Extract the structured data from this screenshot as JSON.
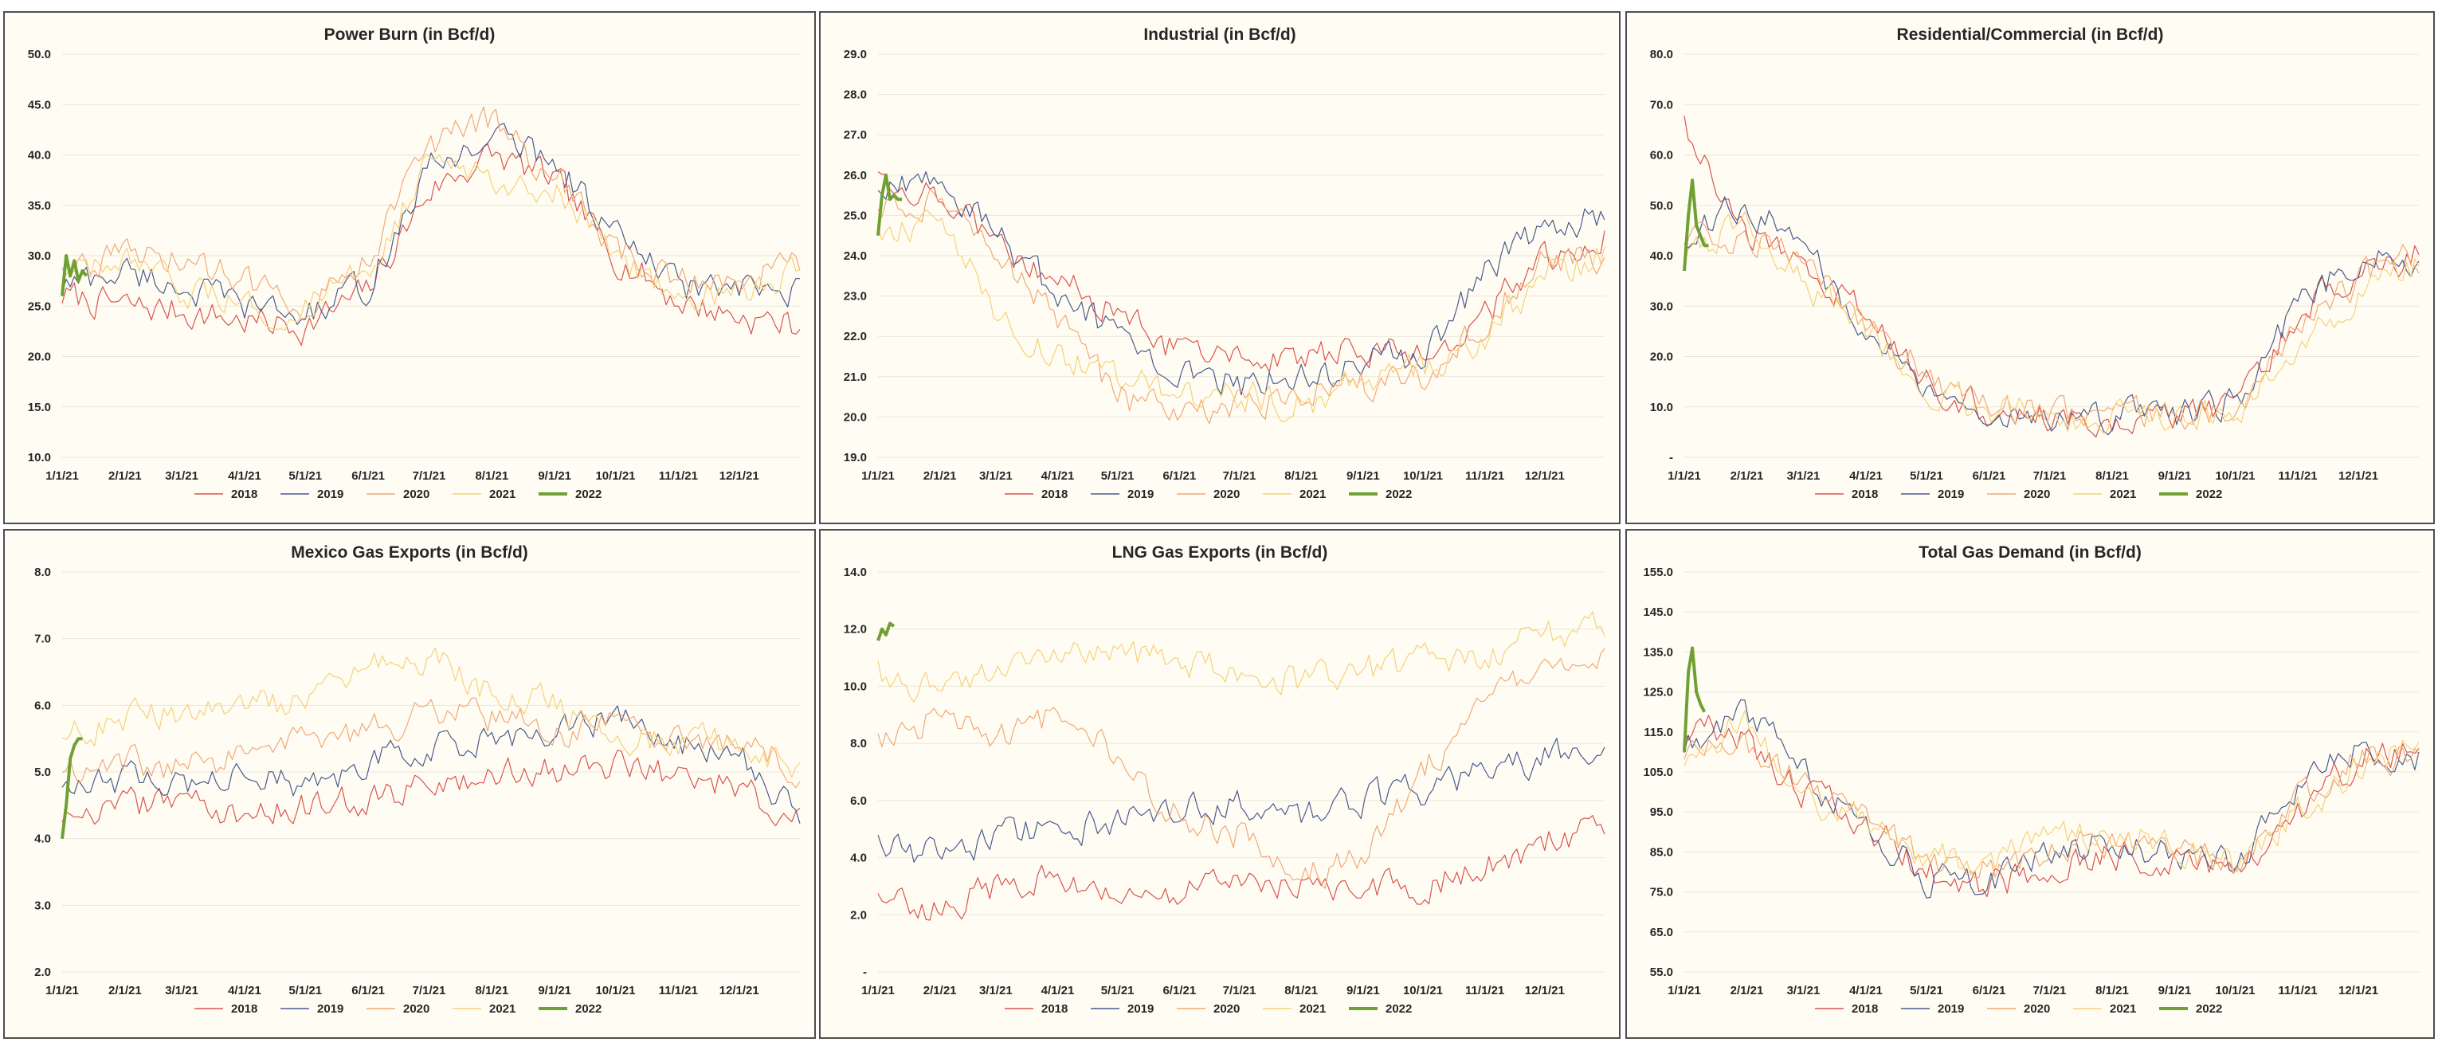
{
  "series_styles": [
    {
      "name": "2018",
      "color": "#d9534f",
      "width": 1.2
    },
    {
      "name": "2019",
      "color": "#4a5a8c",
      "width": 1.2
    },
    {
      "name": "2020",
      "color": "#f0a878",
      "width": 1.2
    },
    {
      "name": "2021",
      "color": "#f5d07a",
      "width": 1.2
    },
    {
      "name": "2022",
      "color": "#70a033",
      "width": 4
    }
  ],
  "chart_data": [
    {
      "id": "power-burn",
      "type": "line",
      "title": "Power Burn (in Bcf/d)",
      "yticks": [
        "10.0",
        "15.0",
        "20.0",
        "25.0",
        "30.0",
        "35.0",
        "40.0",
        "45.0",
        "50.0"
      ],
      "ylim": [
        10,
        50
      ],
      "xticks": [
        "1/1/21",
        "2/1/21",
        "3/1/21",
        "4/1/21",
        "5/1/21",
        "6/1/21",
        "7/1/21",
        "8/1/21",
        "9/1/21",
        "10/1/21",
        "11/1/21",
        "12/1/21"
      ],
      "legend": "bottom",
      "series": [
        {
          "name": "2018",
          "x": [
            1,
            32,
            60,
            91,
            121,
            152,
            182,
            213,
            244,
            274,
            305,
            335,
            365
          ],
          "values": [
            26.0,
            25.0,
            24.5,
            23.5,
            23.0,
            26.5,
            36.5,
            40.0,
            37.5,
            30.0,
            25.5,
            24.0,
            23.0
          ]
        },
        {
          "name": "2019",
          "x": [
            1,
            32,
            60,
            91,
            121,
            152,
            182,
            213,
            244,
            274,
            305,
            335,
            365
          ],
          "values": [
            27.0,
            28.5,
            27.0,
            25.0,
            24.0,
            27.0,
            38.5,
            42.0,
            39.5,
            32.0,
            27.0,
            26.5,
            26.0
          ]
        },
        {
          "name": "2020",
          "x": [
            1,
            32,
            60,
            91,
            121,
            152,
            182,
            213,
            244,
            274,
            305,
            335,
            365
          ],
          "values": [
            29.0,
            30.0,
            29.5,
            27.5,
            25.5,
            30.0,
            41.0,
            43.5,
            38.0,
            30.5,
            27.5,
            28.0,
            29.0
          ]
        },
        {
          "name": "2021",
          "x": [
            1,
            32,
            60,
            91,
            121,
            152,
            182,
            213,
            244,
            274,
            305,
            335,
            365
          ],
          "values": [
            28.0,
            29.0,
            26.5,
            25.0,
            24.5,
            29.0,
            39.0,
            38.0,
            36.5,
            30.0,
            26.5,
            26.0,
            28.5
          ]
        },
        {
          "name": "2022",
          "x": [
            1,
            3,
            5,
            7,
            9,
            11,
            13
          ],
          "values": [
            26.0,
            30.0,
            28.0,
            29.5,
            27.5,
            28.5,
            28.0
          ]
        }
      ]
    },
    {
      "id": "industrial",
      "type": "line",
      "title": "Industrial (in Bcf/d)",
      "yticks": [
        "19.0",
        "20.0",
        "21.0",
        "22.0",
        "23.0",
        "24.0",
        "25.0",
        "26.0",
        "27.0",
        "28.0",
        "29.0"
      ],
      "ylim": [
        19,
        29
      ],
      "xticks": [
        "1/1/21",
        "2/1/21",
        "3/1/21",
        "4/1/21",
        "5/1/21",
        "6/1/21",
        "7/1/21",
        "8/1/21",
        "9/1/21",
        "10/1/21",
        "11/1/21",
        "12/1/21"
      ],
      "legend": "bottom",
      "series": [
        {
          "name": "2018",
          "x": [
            1,
            32,
            60,
            91,
            121,
            152,
            182,
            213,
            244,
            274,
            305,
            335,
            365
          ],
          "values": [
            26.0,
            25.5,
            24.5,
            23.5,
            22.5,
            21.6,
            21.6,
            21.5,
            21.6,
            21.5,
            22.5,
            24.0,
            24.5
          ]
        },
        {
          "name": "2019",
          "x": [
            1,
            32,
            60,
            91,
            121,
            152,
            182,
            213,
            244,
            274,
            305,
            335,
            365
          ],
          "values": [
            25.5,
            26.0,
            24.5,
            23.0,
            22.0,
            21.2,
            20.8,
            21.0,
            21.3,
            21.5,
            23.5,
            24.8,
            25.0
          ]
        },
        {
          "name": "2020",
          "x": [
            1,
            32,
            60,
            91,
            121,
            152,
            182,
            213,
            244,
            274,
            305,
            335,
            365
          ],
          "values": [
            25.0,
            25.5,
            24.0,
            22.5,
            20.5,
            20.0,
            20.3,
            20.5,
            20.8,
            21.0,
            22.5,
            23.8,
            24.0
          ]
        },
        {
          "name": "2021",
          "x": [
            1,
            32,
            60,
            91,
            121,
            152,
            182,
            213,
            244,
            274,
            305,
            335,
            365
          ],
          "values": [
            24.5,
            25.0,
            22.5,
            21.5,
            21.0,
            20.5,
            20.5,
            20.3,
            20.8,
            21.2,
            22.0,
            23.5,
            24.0
          ]
        },
        {
          "name": "2022",
          "x": [
            1,
            3,
            5,
            7,
            9,
            11,
            13
          ],
          "values": [
            24.5,
            25.5,
            26.0,
            25.4,
            25.5,
            25.4,
            25.4
          ]
        }
      ]
    },
    {
      "id": "residential-commercial",
      "type": "line",
      "title": "Residential/Commercial (in Bcf/d)",
      "yticks": [
        "-",
        "10.0",
        "20.0",
        "30.0",
        "40.0",
        "50.0",
        "60.0",
        "70.0",
        "80.0"
      ],
      "ylim": [
        0,
        80
      ],
      "xticks": [
        "1/1/21",
        "2/1/21",
        "3/1/21",
        "4/1/21",
        "5/1/21",
        "6/1/21",
        "7/1/21",
        "8/1/21",
        "9/1/21",
        "10/1/21",
        "11/1/21",
        "12/1/21"
      ],
      "legend": "bottom",
      "series": [
        {
          "name": "2018",
          "x": [
            1,
            32,
            60,
            91,
            121,
            152,
            182,
            213,
            244,
            274,
            305,
            335,
            365
          ],
          "values": [
            65.0,
            45.0,
            38.0,
            28.0,
            15.0,
            9.5,
            8.5,
            8.3,
            8.5,
            10.5,
            28.0,
            38.0,
            40.0
          ]
        },
        {
          "name": "2019",
          "x": [
            1,
            32,
            60,
            91,
            121,
            152,
            182,
            213,
            244,
            274,
            305,
            335,
            365
          ],
          "values": [
            45.0,
            50.0,
            42.0,
            25.0,
            14.0,
            9.5,
            8.5,
            8.3,
            8.2,
            11.0,
            30.0,
            40.0,
            38.0
          ]
        },
        {
          "name": "2020",
          "x": [
            1,
            32,
            60,
            91,
            121,
            152,
            182,
            213,
            244,
            274,
            305,
            335,
            365
          ],
          "values": [
            42.0,
            44.0,
            38.0,
            27.0,
            16.0,
            10.0,
            8.5,
            8.3,
            8.6,
            10.0,
            25.0,
            35.0,
            40.0
          ]
        },
        {
          "name": "2021",
          "x": [
            1,
            32,
            60,
            91,
            121,
            152,
            182,
            213,
            244,
            274,
            305,
            335,
            365
          ],
          "values": [
            40.0,
            48.0,
            35.0,
            25.0,
            14.0,
            9.0,
            8.3,
            8.0,
            8.3,
            9.0,
            22.0,
            33.0,
            38.0
          ]
        },
        {
          "name": "2022",
          "x": [
            1,
            3,
            5,
            7,
            9,
            11,
            13
          ],
          "values": [
            37.0,
            48.0,
            55.0,
            46.0,
            44.0,
            42.0,
            42.0
          ]
        }
      ]
    },
    {
      "id": "mexico-gas-exports",
      "type": "line",
      "title": "Mexico Gas Exports (in Bcf/d)",
      "yticks": [
        "2.0",
        "3.0",
        "4.0",
        "5.0",
        "6.0",
        "7.0",
        "8.0"
      ],
      "ylim": [
        2,
        8
      ],
      "xticks": [
        "1/1/21",
        "2/1/21",
        "3/1/21",
        "4/1/21",
        "5/1/21",
        "6/1/21",
        "7/1/21",
        "8/1/21",
        "9/1/21",
        "10/1/21",
        "11/1/21",
        "12/1/21"
      ],
      "legend": "bottom",
      "series": [
        {
          "name": "2018",
          "x": [
            1,
            32,
            60,
            91,
            121,
            152,
            182,
            213,
            244,
            274,
            305,
            335,
            365
          ],
          "values": [
            4.3,
            4.5,
            4.5,
            4.4,
            4.5,
            4.6,
            4.8,
            5.0,
            5.0,
            5.1,
            4.9,
            4.8,
            4.3
          ]
        },
        {
          "name": "2019",
          "x": [
            1,
            32,
            60,
            91,
            121,
            152,
            182,
            213,
            244,
            274,
            305,
            335,
            365
          ],
          "values": [
            4.8,
            4.9,
            4.8,
            4.9,
            4.8,
            5.1,
            5.4,
            5.5,
            5.6,
            5.8,
            5.4,
            5.2,
            4.4
          ]
        },
        {
          "name": "2020",
          "x": [
            1,
            32,
            60,
            91,
            121,
            152,
            182,
            213,
            244,
            274,
            305,
            335,
            365
          ],
          "values": [
            5.0,
            5.2,
            5.0,
            5.3,
            5.4,
            5.6,
            5.9,
            5.8,
            5.6,
            5.7,
            5.4,
            5.5,
            5.0
          ]
        },
        {
          "name": "2021",
          "x": [
            1,
            32,
            60,
            91,
            121,
            152,
            182,
            213,
            244,
            274,
            305,
            335,
            365
          ],
          "values": [
            5.5,
            5.8,
            5.9,
            6.0,
            6.0,
            6.5,
            6.7,
            6.2,
            6.0,
            5.5,
            5.5,
            5.4,
            5.0
          ]
        },
        {
          "name": "2022",
          "x": [
            1,
            3,
            5,
            7,
            9,
            11
          ],
          "values": [
            4.0,
            4.5,
            5.2,
            5.4,
            5.5,
            5.5
          ]
        }
      ]
    },
    {
      "id": "lng-gas-exports",
      "type": "line",
      "title": "LNG Gas Exports (in Bcf/d)",
      "yticks": [
        "-",
        "2.0",
        "4.0",
        "6.0",
        "8.0",
        "10.0",
        "12.0",
        "14.0"
      ],
      "ylim": [
        0,
        14
      ],
      "xticks": [
        "1/1/21",
        "2/1/21",
        "3/1/21",
        "4/1/21",
        "5/1/21",
        "6/1/21",
        "7/1/21",
        "8/1/21",
        "9/1/21",
        "10/1/21",
        "11/1/21",
        "12/1/21"
      ],
      "legend": "bottom",
      "series": [
        {
          "name": "2018",
          "x": [
            1,
            32,
            60,
            91,
            121,
            152,
            182,
            213,
            244,
            274,
            305,
            335,
            365
          ],
          "values": [
            2.5,
            2.2,
            3.0,
            3.2,
            3.0,
            2.8,
            3.0,
            3.2,
            3.0,
            3.0,
            3.8,
            4.5,
            5.0
          ]
        },
        {
          "name": "2019",
          "x": [
            1,
            32,
            60,
            91,
            121,
            152,
            182,
            213,
            244,
            274,
            305,
            335,
            365
          ],
          "values": [
            4.5,
            4.0,
            4.8,
            5.0,
            5.2,
            5.6,
            6.0,
            5.5,
            6.0,
            6.4,
            7.0,
            7.5,
            8.0
          ]
        },
        {
          "name": "2020",
          "x": [
            1,
            32,
            60,
            91,
            121,
            152,
            182,
            213,
            244,
            274,
            305,
            335,
            365
          ],
          "values": [
            8.0,
            9.0,
            8.0,
            9.0,
            7.5,
            5.5,
            4.8,
            3.5,
            3.8,
            7.0,
            9.5,
            10.5,
            10.8
          ]
        },
        {
          "name": "2021",
          "x": [
            1,
            32,
            60,
            91,
            121,
            152,
            182,
            213,
            244,
            274,
            305,
            335,
            365
          ],
          "values": [
            10.5,
            9.8,
            10.5,
            11.0,
            11.3,
            10.8,
            10.5,
            10.2,
            10.5,
            10.8,
            11.2,
            11.8,
            12.0
          ]
        },
        {
          "name": "2022",
          "x": [
            1,
            3,
            5,
            7,
            9
          ],
          "values": [
            11.6,
            12.0,
            11.8,
            12.2,
            12.1
          ]
        }
      ]
    },
    {
      "id": "total-gas-demand",
      "type": "line",
      "title": "Total Gas Demand (in Bcf/d)",
      "yticks": [
        "55.0",
        "65.0",
        "75.0",
        "85.0",
        "95.0",
        "105.0",
        "115.0",
        "125.0",
        "135.0",
        "145.0",
        "155.0"
      ],
      "ylim": [
        55,
        155
      ],
      "xticks": [
        "1/1/21",
        "2/1/21",
        "3/1/21",
        "4/1/21",
        "5/1/21",
        "6/1/21",
        "7/1/21",
        "8/1/21",
        "9/1/21",
        "10/1/21",
        "11/1/21",
        "12/1/21"
      ],
      "legend": "bottom",
      "series": [
        {
          "name": "2018",
          "x": [
            1,
            32,
            60,
            91,
            121,
            152,
            182,
            213,
            244,
            274,
            305,
            335,
            365
          ],
          "values": [
            118.0,
            112.0,
            100.0,
            92.0,
            80.0,
            76.0,
            82.0,
            85.0,
            82.0,
            80.0,
            95.0,
            108.0,
            110.0
          ]
        },
        {
          "name": "2019",
          "x": [
            1,
            32,
            60,
            91,
            121,
            152,
            182,
            213,
            244,
            274,
            305,
            335,
            365
          ],
          "values": [
            112.0,
            120.0,
            105.0,
            92.0,
            78.0,
            78.0,
            85.0,
            88.0,
            84.0,
            82.0,
            100.0,
            112.0,
            108.0
          ]
        },
        {
          "name": "2020",
          "x": [
            1,
            32,
            60,
            91,
            121,
            152,
            182,
            213,
            244,
            274,
            305,
            335,
            365
          ],
          "values": [
            110.0,
            112.0,
            102.0,
            95.0,
            82.0,
            80.0,
            85.0,
            88.0,
            85.0,
            82.0,
            98.0,
            108.0,
            110.0
          ]
        },
        {
          "name": "2021",
          "x": [
            1,
            32,
            60,
            91,
            121,
            152,
            182,
            213,
            244,
            274,
            305,
            335,
            365
          ],
          "values": [
            108.0,
            118.0,
            98.0,
            92.0,
            84.0,
            82.0,
            88.0,
            90.0,
            87.0,
            82.0,
            95.0,
            105.0,
            112.0
          ]
        },
        {
          "name": "2022",
          "x": [
            1,
            3,
            5,
            7,
            9,
            11
          ],
          "values": [
            110.0,
            130.0,
            136.0,
            125.0,
            122.0,
            120.0
          ]
        }
      ]
    }
  ]
}
